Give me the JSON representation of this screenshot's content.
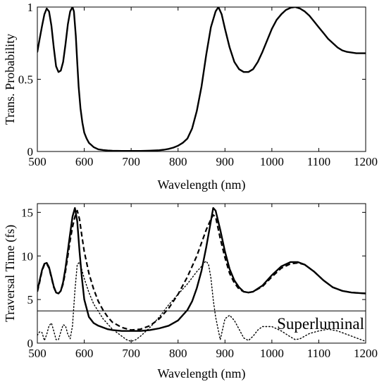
{
  "chart_data": [
    {
      "type": "line",
      "xlabel": "Wavelength (nm)",
      "ylabel": "Trans. Probability",
      "xlim": [
        500,
        1200
      ],
      "ylim": [
        0,
        1
      ],
      "xticks": [
        500,
        600,
        700,
        800,
        900,
        1000,
        1100,
        1200
      ],
      "yticks": [
        0,
        0.5,
        1
      ],
      "ytick_labels": [
        "0",
        "0.5",
        "1"
      ],
      "grid": false,
      "series": [
        {
          "style": "solid",
          "x": [
            500,
            505,
            510,
            515,
            520,
            525,
            530,
            535,
            540,
            545,
            550,
            555,
            560,
            565,
            570,
            575,
            578,
            582,
            585,
            588,
            592,
            596,
            600,
            605,
            610,
            620,
            630,
            640,
            650,
            660,
            680,
            700,
            720,
            740,
            760,
            770,
            780,
            790,
            800,
            810,
            820,
            830,
            840,
            850,
            860,
            870,
            880,
            886,
            893,
            900,
            910,
            920,
            930,
            940,
            950,
            960,
            970,
            980,
            990,
            1000,
            1010,
            1020,
            1030,
            1040,
            1050,
            1060,
            1070,
            1080,
            1090,
            1100,
            1110,
            1120,
            1130,
            1140,
            1150,
            1160,
            1170,
            1180,
            1190,
            1200
          ],
          "y": [
            0.69,
            0.78,
            0.87,
            0.95,
            0.99,
            0.97,
            0.87,
            0.72,
            0.59,
            0.55,
            0.56,
            0.62,
            0.74,
            0.88,
            0.97,
            1.0,
            0.97,
            0.8,
            0.62,
            0.45,
            0.3,
            0.2,
            0.13,
            0.09,
            0.06,
            0.03,
            0.015,
            0.01,
            0.007,
            0.005,
            0.004,
            0.004,
            0.004,
            0.006,
            0.009,
            0.012,
            0.018,
            0.027,
            0.04,
            0.06,
            0.09,
            0.16,
            0.28,
            0.45,
            0.67,
            0.86,
            0.97,
            1.0,
            0.95,
            0.85,
            0.72,
            0.62,
            0.57,
            0.55,
            0.55,
            0.57,
            0.62,
            0.69,
            0.77,
            0.85,
            0.91,
            0.95,
            0.98,
            0.995,
            1.0,
            0.99,
            0.97,
            0.94,
            0.9,
            0.86,
            0.82,
            0.78,
            0.75,
            0.72,
            0.7,
            0.69,
            0.685,
            0.68,
            0.68,
            0.68
          ]
        }
      ]
    },
    {
      "type": "line",
      "xlabel": "Wavelength (nm)",
      "ylabel": "Traversal Time (fs)",
      "xlim": [
        500,
        1200
      ],
      "ylim": [
        0,
        16
      ],
      "xticks": [
        500,
        600,
        700,
        800,
        900,
        1000,
        1100,
        1200
      ],
      "yticks": [
        0,
        5,
        10,
        15
      ],
      "ytick_labels": [
        "0",
        "5",
        "10",
        "15"
      ],
      "grid": false,
      "annotation": "Superluminal",
      "reference_line_y": 3.7,
      "series": [
        {
          "style": "solid",
          "x": [
            500,
            505,
            510,
            515,
            520,
            525,
            530,
            535,
            540,
            545,
            550,
            555,
            560,
            565,
            570,
            575,
            580,
            585,
            590,
            595,
            600,
            610,
            620,
            630,
            640,
            650,
            660,
            680,
            700,
            720,
            740,
            760,
            780,
            800,
            820,
            830,
            840,
            850,
            860,
            870,
            875,
            880,
            890,
            900,
            910,
            920,
            930,
            940,
            950,
            960,
            980,
            1000,
            1020,
            1040,
            1055,
            1070,
            1090,
            1110,
            1130,
            1150,
            1170,
            1200
          ],
          "y": [
            6.0,
            7.2,
            8.4,
            9.1,
            9.2,
            8.7,
            7.6,
            6.5,
            5.8,
            5.7,
            6.0,
            7.0,
            8.6,
            10.6,
            12.6,
            14.5,
            15.5,
            14.0,
            10.5,
            7.5,
            5.0,
            3.0,
            2.3,
            2.0,
            1.8,
            1.6,
            1.5,
            1.4,
            1.4,
            1.4,
            1.5,
            1.7,
            2.0,
            2.6,
            3.8,
            4.8,
            6.3,
            8.3,
            11.0,
            14.0,
            15.5,
            15.2,
            13.0,
            10.5,
            8.5,
            7.2,
            6.4,
            5.9,
            5.8,
            5.9,
            6.6,
            7.8,
            8.8,
            9.3,
            9.3,
            9.0,
            8.2,
            7.2,
            6.4,
            6.0,
            5.8,
            5.7
          ]
        },
        {
          "style": "dashed",
          "x": [
            500,
            505,
            510,
            515,
            520,
            525,
            530,
            535,
            540,
            545,
            550,
            555,
            560,
            565,
            570,
            575,
            580,
            585,
            590,
            595,
            600,
            610,
            620,
            630,
            640,
            650,
            660,
            680,
            700,
            720,
            740,
            760,
            780,
            800,
            820,
            840,
            850,
            860,
            870,
            875,
            880,
            890,
            900,
            910,
            920,
            930,
            940,
            950,
            960,
            980,
            1000,
            1020,
            1040,
            1055,
            1070,
            1090,
            1110,
            1130,
            1150,
            1170,
            1200
          ],
          "y": [
            5.9,
            7.0,
            8.3,
            9.0,
            9.1,
            8.6,
            7.5,
            6.4,
            5.8,
            5.7,
            6.0,
            6.8,
            8.2,
            10.0,
            11.8,
            13.3,
            14.5,
            15.2,
            14.2,
            12.3,
            10.5,
            8.0,
            6.2,
            4.8,
            3.8,
            3.0,
            2.4,
            1.8,
            1.5,
            1.6,
            2.0,
            2.8,
            4.0,
            5.6,
            7.6,
            10.0,
            11.5,
            13.0,
            14.2,
            14.7,
            14.5,
            12.0,
            9.8,
            8.0,
            6.9,
            6.2,
            5.9,
            5.8,
            5.9,
            6.5,
            7.6,
            8.6,
            9.1,
            9.2,
            9.0,
            8.2,
            7.2,
            6.4,
            6.0,
            5.8,
            5.7
          ]
        },
        {
          "style": "dotted",
          "x": [
            500,
            505,
            510,
            515,
            520,
            525,
            530,
            535,
            540,
            545,
            550,
            555,
            560,
            565,
            570,
            575,
            580,
            585,
            590,
            595,
            600,
            610,
            620,
            640,
            660,
            680,
            690,
            700,
            710,
            720,
            740,
            760,
            780,
            800,
            820,
            840,
            850,
            855,
            860,
            865,
            870,
            875,
            880,
            890,
            895,
            900,
            910,
            920,
            930,
            940,
            950,
            960,
            970,
            980,
            1000,
            1020,
            1040,
            1050,
            1060,
            1070,
            1080,
            1100,
            1120,
            1140,
            1160,
            1180,
            1200
          ],
          "y": [
            0.9,
            1.3,
            1.2,
            0.3,
            1.0,
            2.0,
            2.3,
            1.4,
            0.4,
            0.4,
            1.3,
            2.1,
            2.0,
            1.0,
            0.5,
            2.0,
            6.0,
            9.0,
            9.3,
            8.4,
            7.4,
            5.8,
            4.5,
            2.8,
            1.6,
            0.8,
            0.4,
            0.2,
            0.4,
            0.8,
            1.8,
            3.0,
            4.4,
            5.6,
            6.8,
            8.2,
            8.8,
            9.2,
            9.4,
            9.0,
            7.5,
            5.0,
            3.0,
            0.4,
            1.6,
            2.8,
            3.2,
            2.6,
            1.6,
            0.6,
            0.3,
            0.8,
            1.5,
            1.9,
            1.9,
            1.4,
            0.7,
            0.4,
            0.5,
            0.8,
            1.1,
            1.4,
            1.6,
            1.4,
            1.0,
            0.6,
            0.2
          ]
        }
      ]
    }
  ]
}
